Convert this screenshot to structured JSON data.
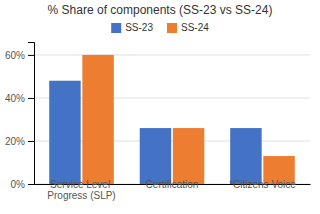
{
  "chart_data": {
    "type": "bar",
    "title": "% Share of components (SS-23 vs SS-24)",
    "categories": [
      "Service Level Progress (SLP)",
      "Certification",
      "*Citizens Voice"
    ],
    "series": [
      {
        "name": "SS-23",
        "color": "#4472C4",
        "values": [
          48,
          26,
          26
        ]
      },
      {
        "name": "SS-24",
        "color": "#ED7D31",
        "values": [
          60,
          26,
          13
        ]
      }
    ],
    "ylim": [
      0,
      66
    ],
    "yticks": [
      {
        "value": 0,
        "label": "0%"
      },
      {
        "value": 20,
        "label": "20%"
      },
      {
        "value": 40,
        "label": "40%"
      },
      {
        "value": 60,
        "label": "60%"
      }
    ],
    "grid": true,
    "legend": "top"
  }
}
